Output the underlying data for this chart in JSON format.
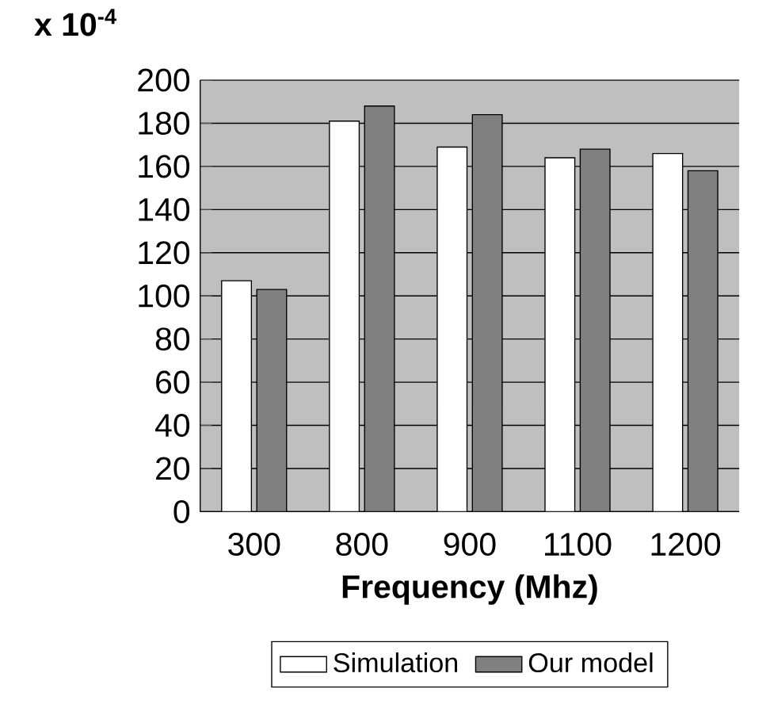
{
  "chart_data": {
    "type": "bar",
    "ylabel": "x 10$^{-4}$",
    "xlabel": "Frequency (Mhz)",
    "categories": [
      "300",
      "800",
      "900",
      "1100",
      "1200"
    ],
    "series": [
      {
        "name": "Simulation",
        "color": "#ffffff",
        "values": [
          107,
          181,
          169,
          164,
          166
        ]
      },
      {
        "name": "Our model",
        "color": "#808080",
        "values": [
          103,
          188,
          184,
          168,
          158
        ]
      }
    ],
    "ylim": [
      0,
      200
    ],
    "yticks": [
      0,
      20,
      40,
      60,
      80,
      100,
      120,
      140,
      160,
      180,
      200
    ],
    "grid": "y",
    "legend": "bottom"
  }
}
